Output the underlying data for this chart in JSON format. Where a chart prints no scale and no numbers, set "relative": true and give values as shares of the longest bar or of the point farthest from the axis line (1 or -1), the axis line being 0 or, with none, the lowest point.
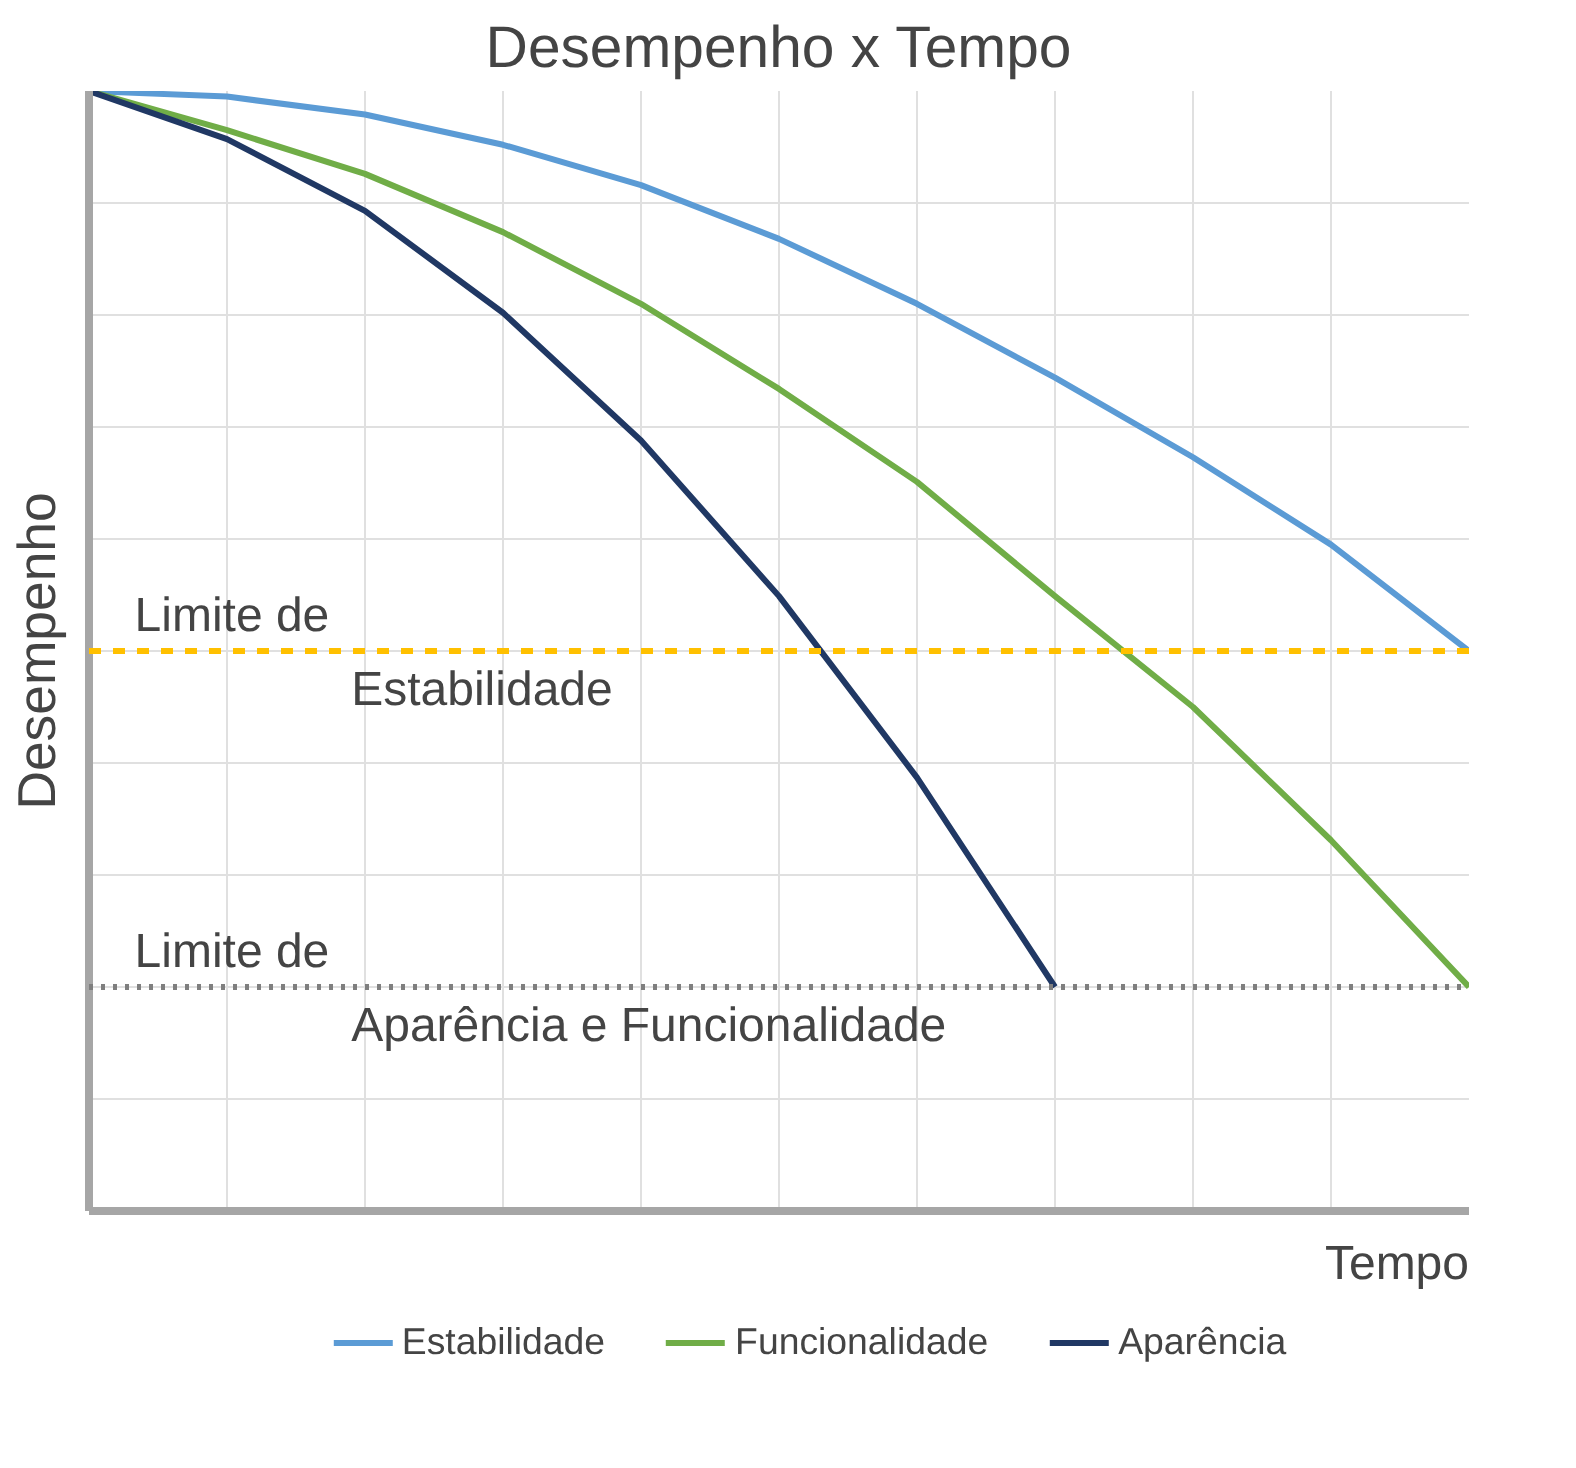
{
  "chart_data": {
    "type": "line",
    "title": "Desempenho x Tempo",
    "xlabel": "Tempo",
    "ylabel": "Desempenho",
    "relative": true,
    "categories": [
      null,
      null,
      null,
      null,
      null,
      null,
      null,
      null,
      null,
      null,
      null
    ],
    "series": [
      {
        "name": "Estabilidade",
        "color": "#5b9bd5",
        "values": [
          1,
          0.995,
          0.979,
          0.952,
          0.916,
          0.868,
          0.81,
          0.744,
          0.673,
          0.595,
          0.5
        ]
      },
      {
        "name": "Funcionalidade",
        "color": "#70ad47",
        "values": [
          1,
          0.965,
          0.926,
          0.874,
          0.81,
          0.734,
          0.651,
          0.549,
          0.45,
          0.331,
          0.2
        ]
      },
      {
        "name": "Aparência",
        "color": "#203864",
        "values": [
          1,
          0.957,
          0.893,
          0.802,
          0.688,
          0.549,
          0.387,
          0.2,
          null,
          null,
          null
        ]
      }
    ],
    "ref_lines": [
      {
        "axis": "y",
        "value": 0.5,
        "label": "Limite de\nEstabilidade",
        "color": "#ffc000",
        "line_style": "dashed"
      },
      {
        "axis": "y",
        "value": 0.2,
        "label": "Limite de\nAparência e Funcionalidade",
        "color": "#7f7f7f",
        "line_style": "dotted"
      }
    ],
    "grid": true,
    "legend": "bottom",
    "marker": "none",
    "line_style": "solid"
  }
}
